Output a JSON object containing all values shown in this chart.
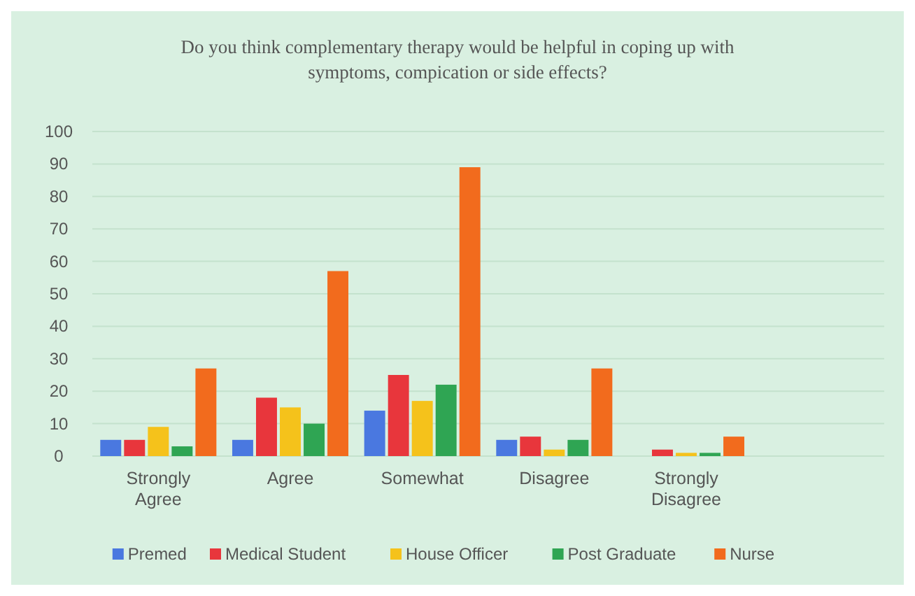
{
  "chart_data": {
    "type": "bar",
    "title": "Do you think complementary therapy would be helpful in coping up with symptoms, compication or side effects?",
    "categories": [
      "Strongly Agree",
      "Agree",
      "Somewhat",
      "Disagree",
      "Strongly Disagree",
      null
    ],
    "series": [
      {
        "name": "Premed",
        "color": "#4a78e0",
        "values": [
          5,
          5,
          14,
          5,
          0,
          null
        ]
      },
      {
        "name": "Medical Student",
        "color": "#e8363c",
        "values": [
          5,
          18,
          25,
          6,
          2,
          null
        ]
      },
      {
        "name": "House Officer",
        "color": "#f5c21b",
        "values": [
          9,
          15,
          17,
          2,
          1,
          null
        ]
      },
      {
        "name": "Post Graduate",
        "color": "#2fa553",
        "values": [
          3,
          10,
          22,
          5,
          1,
          null
        ]
      },
      {
        "name": "Nurse",
        "color": "#f26b1d",
        "values": [
          27,
          57,
          89,
          27,
          6,
          null
        ]
      }
    ],
    "ylim": [
      0,
      100
    ],
    "yticks": [
      0,
      10,
      20,
      30,
      40,
      50,
      60,
      70,
      80,
      90,
      100
    ],
    "grid": "y",
    "legend": "bottom"
  }
}
